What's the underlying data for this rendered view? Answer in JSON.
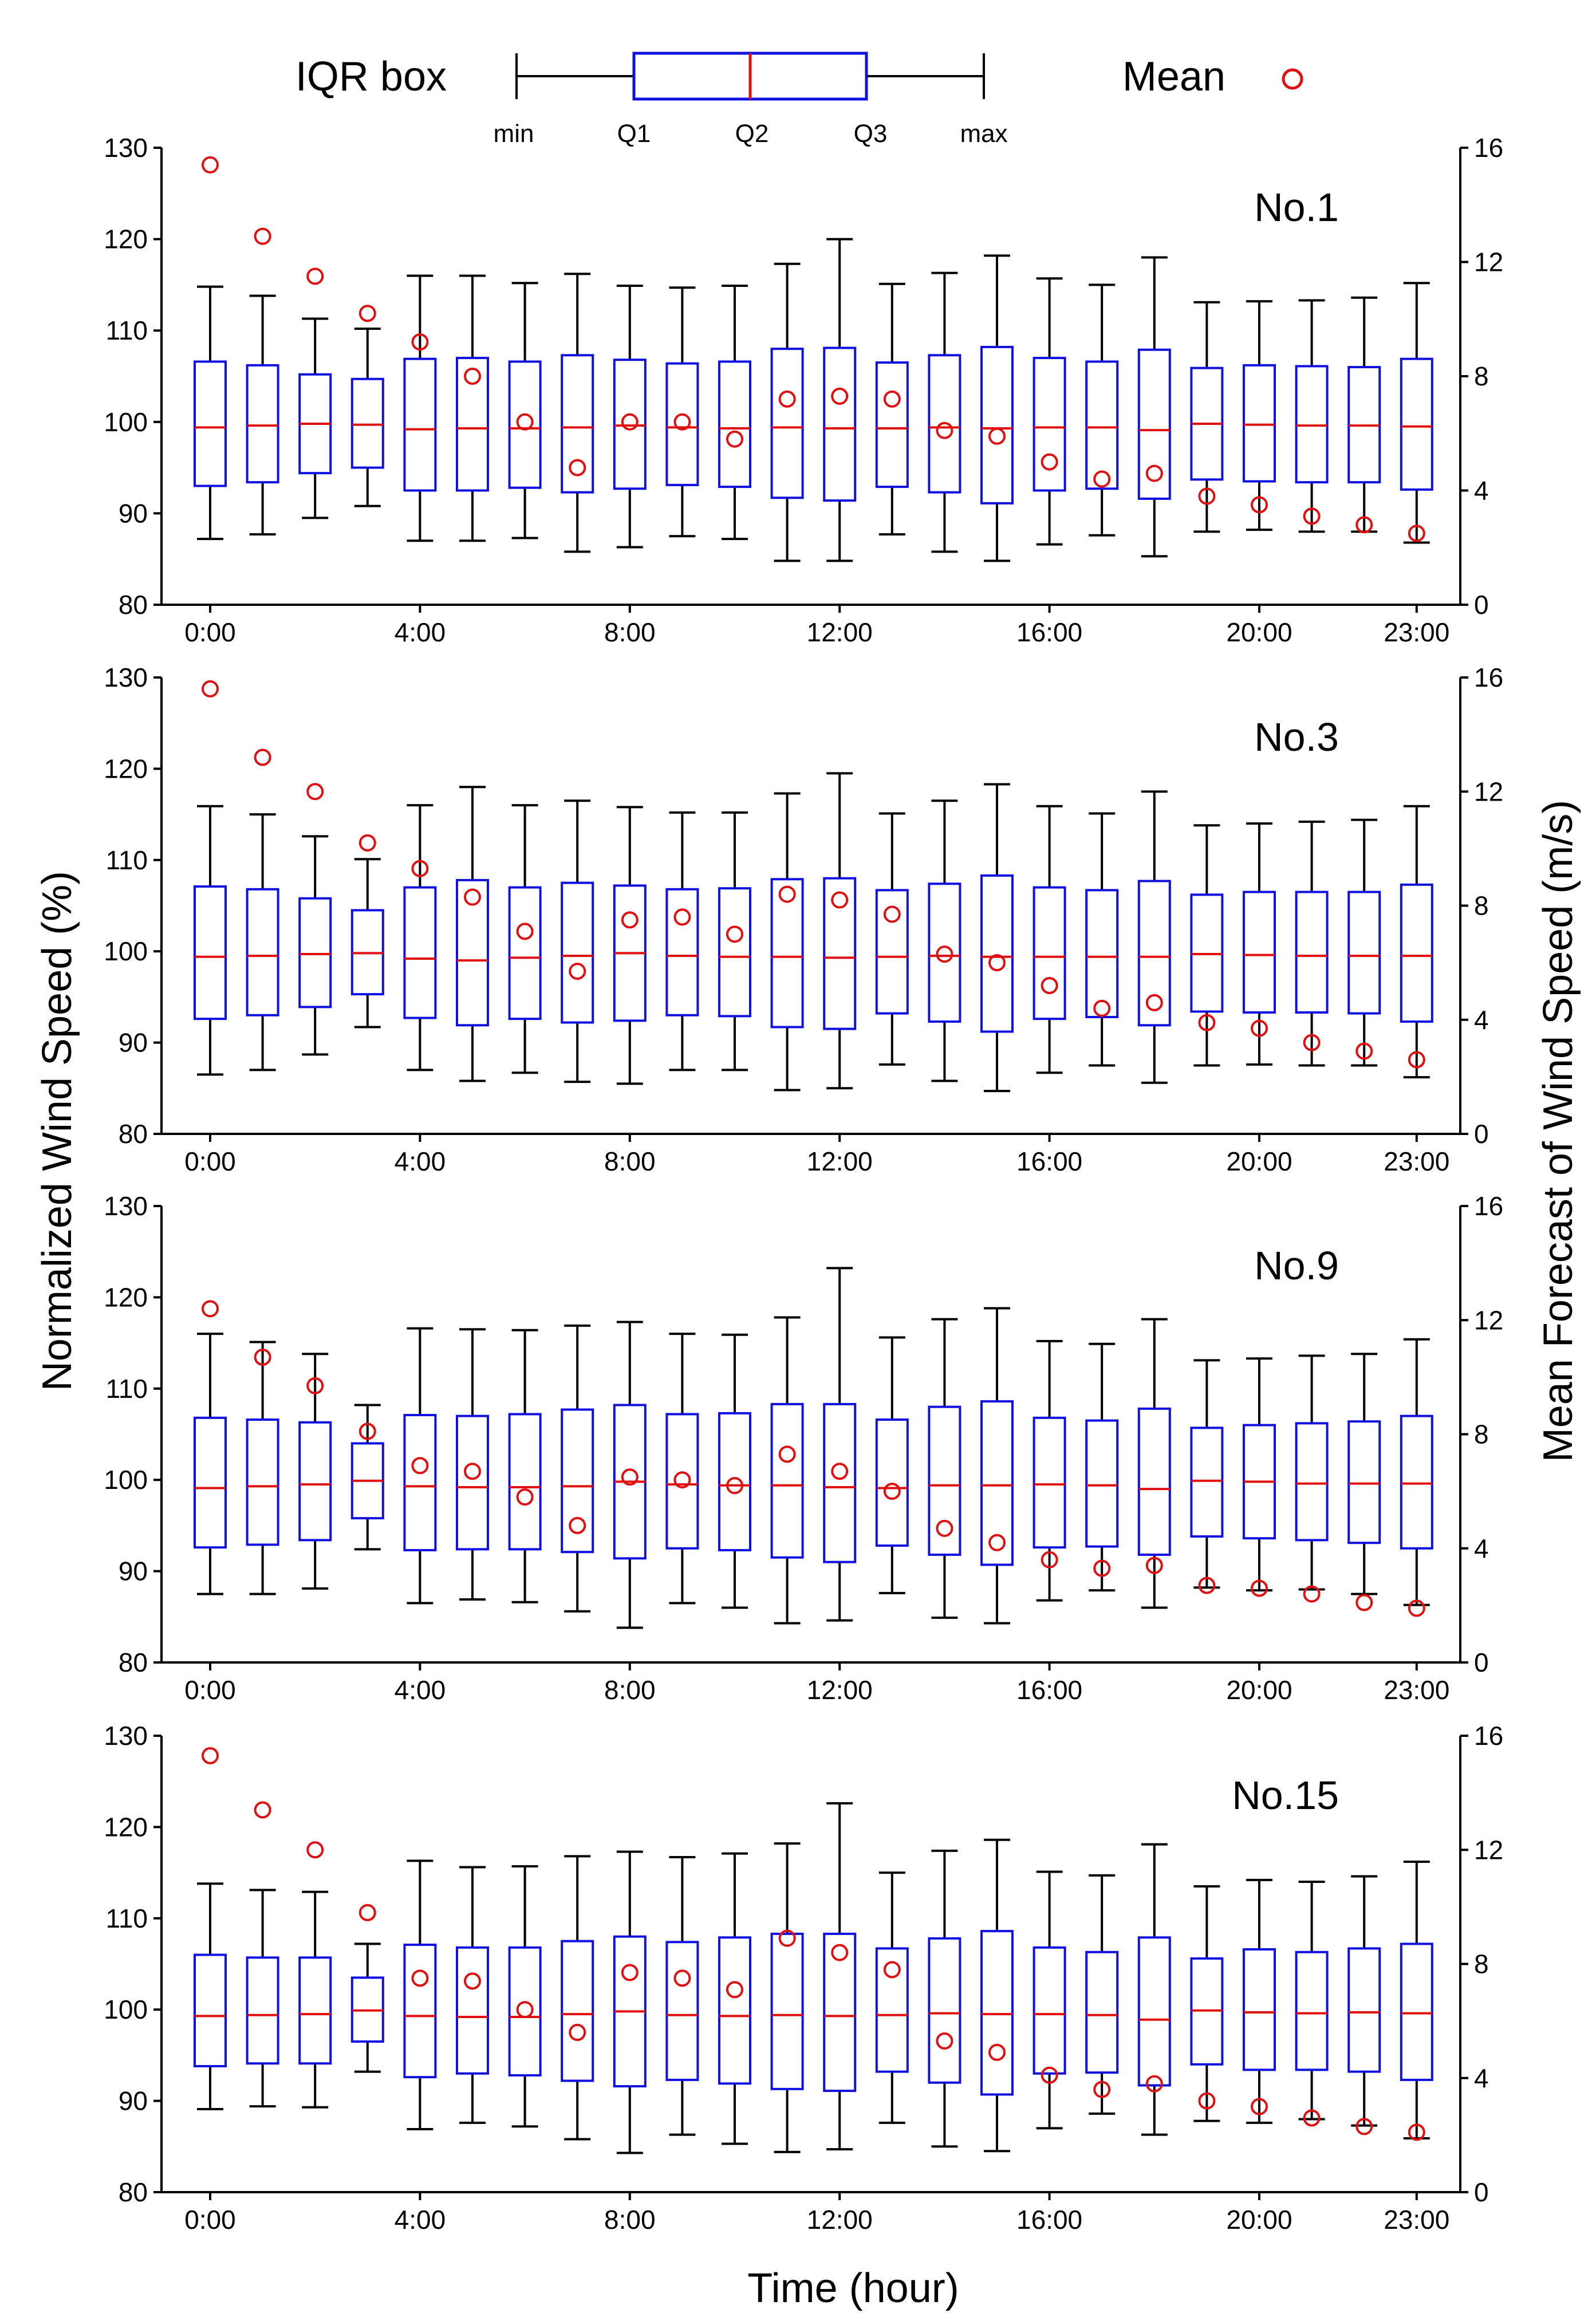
{
  "legend": {
    "iqr_label": "IQR box",
    "mean_label": "Mean",
    "markers": [
      "min",
      "Q1",
      "Q2",
      "Q3",
      "max"
    ]
  },
  "axes": {
    "xlabel": "Time (hour)",
    "ylabel_left": "Normalized Wind Speed (%)",
    "ylabel_right": "Mean Forecast of Wind Speed (m/s)",
    "left_ticks": [
      "80",
      "90",
      "100",
      "110",
      "120",
      "130"
    ],
    "right_ticks": [
      "0",
      "4",
      "8",
      "12",
      "16"
    ],
    "x_ticks": [
      "0:00",
      "4:00",
      "8:00",
      "12:00",
      "16:00",
      "20:00",
      "23:00"
    ]
  },
  "colors": {
    "box": "#1010e0",
    "median": "#e01010",
    "mean": "#e01010",
    "whisker": "#000000"
  },
  "chart_data": [
    {
      "type": "box",
      "title": "No.1",
      "x": [
        0,
        1,
        2,
        3,
        4,
        5,
        6,
        7,
        8,
        9,
        10,
        11,
        12,
        13,
        14,
        15,
        16,
        17,
        18,
        19,
        20,
        21,
        22,
        23
      ],
      "ylim": [
        80,
        130
      ],
      "y2lim": [
        0,
        16
      ],
      "min": [
        87.2,
        87.7,
        89.5,
        90.8,
        87.0,
        87.0,
        87.3,
        85.8,
        86.3,
        87.5,
        87.2,
        84.8,
        84.8,
        87.7,
        85.8,
        84.8,
        86.6,
        87.6,
        85.3,
        88.0,
        88.2,
        88.0,
        88.0,
        86.8
      ],
      "q1": [
        93.0,
        93.4,
        94.4,
        95.0,
        92.5,
        92.5,
        92.8,
        92.3,
        92.7,
        93.1,
        92.9,
        91.7,
        91.4,
        92.9,
        92.3,
        91.1,
        92.5,
        92.7,
        91.6,
        93.7,
        93.5,
        93.4,
        93.4,
        92.6
      ],
      "median": [
        99.4,
        99.6,
        99.8,
        99.7,
        99.2,
        99.3,
        99.3,
        99.4,
        99.6,
        99.4,
        99.3,
        99.4,
        99.3,
        99.3,
        99.4,
        99.3,
        99.4,
        99.4,
        99.1,
        99.8,
        99.7,
        99.6,
        99.6,
        99.5
      ],
      "q3": [
        106.6,
        106.2,
        105.2,
        104.7,
        106.9,
        107.0,
        106.6,
        107.3,
        106.8,
        106.4,
        106.6,
        108.0,
        108.1,
        106.5,
        107.3,
        108.2,
        107.0,
        106.6,
        107.9,
        105.9,
        106.2,
        106.1,
        106.0,
        106.9
      ],
      "max": [
        114.8,
        113.8,
        111.3,
        110.2,
        116.0,
        116.0,
        115.2,
        116.2,
        114.9,
        114.7,
        114.9,
        117.3,
        120.0,
        115.1,
        116.3,
        118.2,
        115.7,
        115.0,
        118.0,
        113.1,
        113.2,
        113.3,
        113.6,
        115.2
      ],
      "mean_ms": [
        15.4,
        12.9,
        11.5,
        10.2,
        9.2,
        8.0,
        6.4,
        4.8,
        6.4,
        6.4,
        5.8,
        7.2,
        7.3,
        7.2,
        6.1,
        5.9,
        5.0,
        4.4,
        4.6,
        3.8,
        3.5,
        3.1,
        2.8,
        2.5
      ]
    },
    {
      "type": "box",
      "title": "No.3",
      "x": [
        0,
        1,
        2,
        3,
        4,
        5,
        6,
        7,
        8,
        9,
        10,
        11,
        12,
        13,
        14,
        15,
        16,
        17,
        18,
        19,
        20,
        21,
        22,
        23
      ],
      "ylim": [
        80,
        130
      ],
      "y2lim": [
        0,
        16
      ],
      "min": [
        86.5,
        87.0,
        88.7,
        91.7,
        87.0,
        85.8,
        86.7,
        85.7,
        85.5,
        87.0,
        87.0,
        84.8,
        85.0,
        87.6,
        85.8,
        84.7,
        86.7,
        87.5,
        85.6,
        87.5,
        87.6,
        87.5,
        87.5,
        86.2
      ],
      "q1": [
        92.6,
        93.0,
        93.9,
        95.3,
        92.7,
        91.9,
        92.6,
        92.2,
        92.4,
        93.0,
        92.9,
        91.7,
        91.5,
        93.2,
        92.3,
        91.2,
        92.6,
        92.8,
        91.9,
        93.4,
        93.3,
        93.3,
        93.2,
        92.3
      ],
      "median": [
        99.4,
        99.5,
        99.7,
        99.8,
        99.2,
        99.0,
        99.3,
        99.5,
        99.8,
        99.5,
        99.4,
        99.4,
        99.3,
        99.4,
        99.5,
        99.4,
        99.4,
        99.4,
        99.4,
        99.7,
        99.6,
        99.5,
        99.5,
        99.5
      ],
      "q3": [
        107.1,
        106.8,
        105.8,
        104.5,
        107.0,
        107.8,
        107.0,
        107.5,
        107.2,
        106.8,
        106.9,
        107.9,
        108.0,
        106.7,
        107.4,
        108.3,
        107.0,
        106.7,
        107.7,
        106.2,
        106.5,
        106.5,
        106.5,
        107.3
      ],
      "max": [
        115.9,
        115.0,
        112.6,
        110.1,
        116.0,
        118.0,
        116.0,
        116.5,
        115.8,
        115.2,
        115.2,
        117.3,
        119.5,
        115.1,
        116.5,
        118.3,
        115.9,
        115.1,
        117.5,
        113.8,
        114.0,
        114.2,
        114.4,
        115.9
      ],
      "mean_ms": [
        15.6,
        13.2,
        12.0,
        10.2,
        9.3,
        8.3,
        7.1,
        5.7,
        7.5,
        7.6,
        7.0,
        8.4,
        8.2,
        7.7,
        6.3,
        6.0,
        5.2,
        4.4,
        4.6,
        3.9,
        3.7,
        3.2,
        2.9,
        2.6
      ]
    },
    {
      "type": "box",
      "title": "No.9",
      "x": [
        0,
        1,
        2,
        3,
        4,
        5,
        6,
        7,
        8,
        9,
        10,
        11,
        12,
        13,
        14,
        15,
        16,
        17,
        18,
        19,
        20,
        21,
        22,
        23
      ],
      "ylim": [
        80,
        130
      ],
      "y2lim": [
        0,
        16
      ],
      "min": [
        87.5,
        87.5,
        88.1,
        92.4,
        86.5,
        86.9,
        86.6,
        85.6,
        83.8,
        86.5,
        86.0,
        84.3,
        84.6,
        87.6,
        84.9,
        84.3,
        86.8,
        87.9,
        86.0,
        88.2,
        87.9,
        88.0,
        87.5,
        86.3
      ],
      "q1": [
        92.6,
        92.9,
        93.4,
        95.8,
        92.3,
        92.4,
        92.4,
        92.1,
        91.4,
        92.5,
        92.3,
        91.5,
        91.0,
        92.8,
        91.8,
        90.7,
        92.6,
        92.7,
        91.8,
        93.8,
        93.6,
        93.4,
        93.1,
        92.5
      ],
      "median": [
        99.1,
        99.3,
        99.5,
        99.9,
        99.3,
        99.2,
        99.2,
        99.3,
        99.8,
        99.5,
        99.4,
        99.4,
        99.2,
        99.1,
        99.4,
        99.4,
        99.5,
        99.4,
        99.0,
        99.9,
        99.8,
        99.6,
        99.6,
        99.6
      ],
      "q3": [
        106.8,
        106.6,
        106.3,
        104.0,
        107.1,
        107.0,
        107.2,
        107.7,
        108.2,
        107.2,
        107.3,
        108.3,
        108.3,
        106.6,
        108.0,
        108.6,
        106.8,
        106.5,
        107.8,
        105.7,
        106.0,
        106.2,
        106.4,
        107.0
      ],
      "max": [
        116.0,
        115.1,
        113.8,
        108.2,
        116.6,
        116.5,
        116.4,
        116.9,
        117.3,
        116.0,
        115.9,
        117.8,
        123.2,
        115.6,
        117.6,
        118.8,
        115.2,
        114.9,
        117.6,
        113.1,
        113.3,
        113.6,
        113.8,
        115.4
      ],
      "mean_ms": [
        12.4,
        10.7,
        9.7,
        8.1,
        6.9,
        6.7,
        5.8,
        4.8,
        6.5,
        6.4,
        6.2,
        7.3,
        6.7,
        6.0,
        4.7,
        4.2,
        3.6,
        3.3,
        3.4,
        2.7,
        2.6,
        2.4,
        2.1,
        1.9
      ]
    },
    {
      "type": "box",
      "title": "No.15",
      "x": [
        0,
        1,
        2,
        3,
        4,
        5,
        6,
        7,
        8,
        9,
        10,
        11,
        12,
        13,
        14,
        15,
        16,
        17,
        18,
        19,
        20,
        21,
        22,
        23
      ],
      "ylim": [
        80,
        130
      ],
      "y2lim": [
        0,
        16
      ],
      "min": [
        89.1,
        89.4,
        89.3,
        93.2,
        86.9,
        87.6,
        87.2,
        85.8,
        84.3,
        86.3,
        85.3,
        84.4,
        84.7,
        87.6,
        85.0,
        84.5,
        87.0,
        88.6,
        86.3,
        87.8,
        87.6,
        88.0,
        87.3,
        85.9
      ],
      "q1": [
        93.8,
        94.1,
        94.1,
        96.5,
        92.6,
        93.0,
        92.8,
        92.2,
        91.6,
        92.3,
        91.9,
        91.3,
        91.1,
        93.2,
        92.0,
        90.7,
        93.0,
        93.1,
        91.7,
        94.0,
        93.4,
        93.4,
        93.2,
        92.3
      ],
      "median": [
        99.3,
        99.4,
        99.5,
        99.9,
        99.3,
        99.2,
        99.2,
        99.5,
        99.8,
        99.4,
        99.3,
        99.4,
        99.3,
        99.4,
        99.6,
        99.5,
        99.5,
        99.4,
        98.9,
        99.9,
        99.7,
        99.6,
        99.7,
        99.6
      ],
      "q3": [
        106.0,
        105.7,
        105.7,
        103.5,
        107.1,
        106.8,
        106.8,
        107.5,
        108.0,
        107.4,
        107.9,
        108.3,
        108.3,
        106.7,
        107.8,
        108.6,
        106.8,
        106.3,
        107.9,
        105.6,
        106.6,
        106.3,
        106.7,
        107.2
      ],
      "max": [
        113.8,
        113.1,
        112.9,
        107.2,
        116.3,
        115.6,
        115.7,
        116.8,
        117.3,
        116.7,
        117.1,
        118.2,
        122.6,
        115.0,
        117.4,
        118.6,
        115.1,
        114.7,
        118.1,
        113.5,
        114.2,
        114.0,
        114.6,
        116.2
      ],
      "mean_ms": [
        15.3,
        13.4,
        12.0,
        9.8,
        7.5,
        7.4,
        6.4,
        5.6,
        7.7,
        7.5,
        7.1,
        8.9,
        8.4,
        7.8,
        5.3,
        4.9,
        4.1,
        3.6,
        3.8,
        3.2,
        3.0,
        2.6,
        2.3,
        2.1
      ]
    }
  ]
}
